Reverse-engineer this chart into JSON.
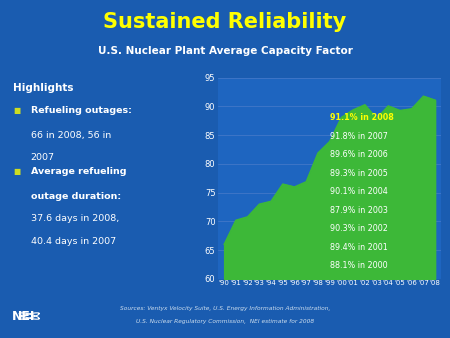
{
  "title": "Sustained Reliability",
  "subtitle": "U.S. Nuclear Plant Average Capacity Factor",
  "bg_color": "#1a5cb0",
  "chart_bg": "#1e65c0",
  "years": [
    "'90",
    "'91",
    "'92",
    "'93",
    "'94",
    "'95",
    "'96",
    "'97",
    "'98",
    "'99",
    "'00",
    "'01",
    "'02",
    "'03",
    "'04",
    "'05",
    "'06",
    "'07",
    "'08"
  ],
  "values": [
    66.0,
    70.2,
    70.8,
    73.0,
    73.5,
    76.5,
    76.0,
    76.9,
    81.9,
    83.9,
    88.1,
    89.4,
    90.3,
    87.9,
    90.1,
    89.3,
    89.6,
    91.8,
    91.1
  ],
  "ylim": [
    60,
    95
  ],
  "yticks": [
    60,
    65,
    70,
    75,
    80,
    85,
    90,
    95
  ],
  "fill_color": "#3db838",
  "line_color": "#3db838",
  "highlight_labels": [
    {
      "text": "91.1% in 2008",
      "color": "#ffff00"
    },
    {
      "text": "91.8% in 2007",
      "color": "#ffffff"
    },
    {
      "text": "89.6% in 2006",
      "color": "#ffffff"
    },
    {
      "text": "89.3% in 2005",
      "color": "#ffffff"
    },
    {
      "text": "90.1% in 2004",
      "color": "#ffffff"
    },
    {
      "text": "87.9% in 2003",
      "color": "#ffffff"
    },
    {
      "text": "90.3% in 2002",
      "color": "#ffffff"
    },
    {
      "text": "89.4% in 2001",
      "color": "#ffffff"
    },
    {
      "text": "88.1% in 2000",
      "color": "#ffffff"
    }
  ],
  "highlights_text": "Highlights",
  "bullet_color": "#ccdd22",
  "bullet1_line1": "Refueling outages:",
  "bullet1_line2": "66 in 2008, 56 in",
  "bullet1_line3": "2007",
  "bullet2_line1": "Average refueling",
  "bullet2_line2": "outage duration:",
  "bullet2_line3": "37.6 days in 2008,",
  "bullet2_line4": "40.4 days in 2007",
  "source_line1": "Sources: Ventyx Velocity Suite, U.S. Energy Information Administration,",
  "source_line2": "U.S. Nuclear Regulatory Commission,  NEI estimate for 2008",
  "title_color": "#ffff00",
  "subtitle_color": "#ffffff",
  "text_color": "#ffffff",
  "grid_color": "#5580cc"
}
